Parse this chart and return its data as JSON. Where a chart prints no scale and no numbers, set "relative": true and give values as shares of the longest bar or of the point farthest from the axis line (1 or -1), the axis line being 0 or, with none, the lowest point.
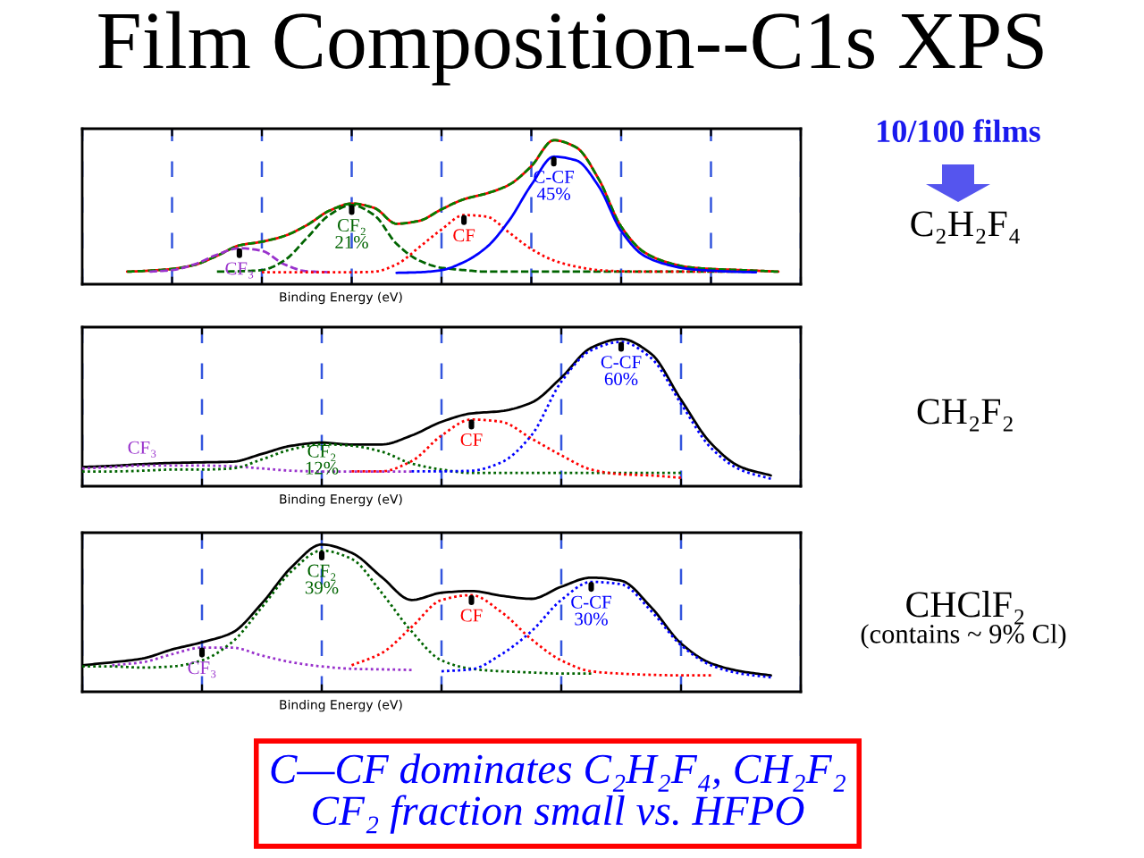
{
  "chart_data": [
    {
      "type": "line",
      "title": "Film Composition--C1s XPS",
      "xlabel": "Binding Energy (eV)",
      "relative": true,
      "grid": "x",
      "categories": [
        null,
        null,
        null,
        null,
        null,
        null,
        null,
        null,
        null,
        null,
        null,
        null,
        null,
        null,
        null,
        null,
        null,
        null,
        null,
        null,
        null,
        null,
        null,
        null,
        null,
        null,
        null,
        null,
        null,
        null,
        null,
        null,
        null
      ],
      "series": [
        {
          "color": "#ff0000",
          "line_style": "solid",
          "values": [
            null,
            null,
            0.087,
            0.094,
            0.106,
            0.134,
            0.197,
            0.27,
            0.295,
            0.335,
            0.41,
            0.51,
            0.56,
            0.53,
            0.42,
            0.44,
            0.52,
            0.59,
            0.63,
            0.69,
            0.82,
            1.0,
            0.95,
            0.73,
            0.4,
            0.225,
            0.154,
            0.118,
            0.106,
            0.1,
            0.094,
            0.087,
            null
          ]
        },
        {
          "color": "#008000",
          "line_style": "dashed",
          "values": [
            null,
            null,
            0.087,
            0.094,
            0.106,
            0.134,
            0.197,
            0.27,
            0.295,
            0.335,
            0.41,
            0.51,
            0.56,
            0.53,
            0.42,
            0.44,
            0.52,
            0.59,
            0.63,
            0.69,
            0.82,
            1.0,
            0.95,
            0.73,
            0.4,
            0.225,
            0.154,
            0.118,
            0.106,
            0.1,
            0.094,
            0.087,
            null
          ]
        },
        {
          "name": "CF₃",
          "color": "#9932cc",
          "line_style": "dashed",
          "values": [
            null,
            null,
            null,
            0.087,
            0.098,
            0.138,
            0.205,
            0.25,
            0.232,
            0.138,
            0.09,
            0.083,
            null,
            null,
            null,
            null,
            null,
            null,
            null,
            null,
            null,
            null,
            null,
            null,
            null,
            null,
            null,
            null,
            null,
            null,
            null,
            null,
            null
          ]
        },
        {
          "name": "CF₂\n21%",
          "color": "#006400",
          "line_style": "dashed",
          "values": [
            null,
            null,
            null,
            null,
            null,
            null,
            0.087,
            0.09,
            0.098,
            0.165,
            0.32,
            0.48,
            0.55,
            0.48,
            0.28,
            0.165,
            0.114,
            0.098,
            0.087,
            0.087,
            0.087,
            0.087,
            0.087,
            0.087,
            0.087,
            0.087,
            0.087,
            0.087,
            0.087,
            0.087,
            0.087,
            null,
            null
          ]
        },
        {
          "name": "CF",
          "color": "#ff0000",
          "line_style": "dotted",
          "values": [
            null,
            null,
            null,
            null,
            null,
            null,
            null,
            null,
            0.083,
            0.083,
            0.083,
            0.083,
            0.083,
            0.087,
            0.138,
            0.256,
            0.38,
            0.48,
            0.47,
            0.36,
            0.244,
            0.165,
            0.122,
            0.098,
            0.09,
            0.087,
            0.087,
            0.087,
            0.087,
            0.087,
            null,
            null,
            null
          ]
        },
        {
          "name": "C-CF\n45%",
          "color": "#0000ff",
          "line_style": "solid",
          "values": [
            null,
            null,
            null,
            null,
            null,
            null,
            null,
            null,
            null,
            null,
            null,
            null,
            null,
            null,
            0.079,
            0.083,
            0.098,
            0.154,
            0.256,
            0.44,
            0.69,
            0.886,
            0.86,
            0.68,
            0.37,
            0.2,
            0.138,
            0.106,
            0.094,
            0.087,
            0.083,
            null,
            null
          ]
        }
      ],
      "annotations": [
        "10/100 films",
        "C₂H₂F₄"
      ]
    },
    {
      "type": "line",
      "xlabel": "Binding Energy (eV)",
      "relative": true,
      "grid": "x",
      "line_style": "dotted",
      "categories": [
        null,
        null,
        null,
        null,
        null,
        null,
        null,
        null,
        null,
        null,
        null,
        null,
        null,
        null,
        null,
        null,
        null,
        null,
        null,
        null,
        null,
        null,
        null,
        null,
        null
      ],
      "series": [
        {
          "color": "#000000",
          "line_style": "solid",
          "values": [
            0.13,
            0.138,
            0.15,
            0.158,
            0.162,
            0.166,
            0.219,
            0.275,
            0.296,
            0.283,
            0.283,
            0.344,
            0.437,
            0.494,
            0.51,
            0.567,
            0.737,
            0.94,
            1.0,
            0.899,
            0.587,
            0.291,
            0.13,
            0.073,
            null
          ]
        },
        {
          "name": "CF₃",
          "color": "#9932cc",
          "values": [
            0.12,
            0.13,
            0.14,
            0.14,
            0.14,
            0.135,
            0.12,
            0.105,
            0.1,
            0.1,
            0.1,
            0.1,
            null,
            null,
            null,
            null,
            null,
            null,
            null,
            null,
            null,
            null,
            null,
            null,
            null
          ]
        },
        {
          "name": "CF₂\n12%",
          "color": "#006400",
          "values": [
            0.1,
            0.1,
            0.105,
            0.113,
            0.113,
            0.12,
            0.182,
            0.251,
            0.285,
            0.275,
            0.235,
            0.154,
            0.113,
            0.09,
            0.09,
            0.09,
            0.09,
            0.09,
            0.09,
            0.09,
            0.09,
            null,
            null,
            null,
            null
          ]
        },
        {
          "name": "CF",
          "color": "#ff0000",
          "values": [
            null,
            null,
            null,
            null,
            null,
            null,
            null,
            null,
            null,
            0.101,
            0.101,
            0.17,
            0.344,
            0.453,
            0.437,
            0.324,
            0.21,
            0.113,
            0.081,
            0.073,
            0.057,
            null,
            null,
            null,
            null
          ]
        },
        {
          "name": "C-CF\n60%",
          "color": "#0000ff",
          "values": [
            null,
            null,
            null,
            null,
            null,
            null,
            null,
            null,
            null,
            null,
            null,
            0.101,
            0.101,
            0.105,
            0.162,
            0.344,
            0.709,
            0.923,
            0.98,
            0.87,
            0.56,
            0.26,
            0.11,
            0.05,
            null
          ]
        }
      ],
      "annotations": [
        "CH₂F₂"
      ]
    },
    {
      "type": "line",
      "xlabel": "Binding Energy (eV)",
      "relative": true,
      "grid": "x",
      "line_style": "dotted",
      "categories": [
        null,
        null,
        null,
        null,
        null,
        null,
        null,
        null,
        null,
        null,
        null,
        null,
        null,
        null,
        null,
        null,
        null,
        null,
        null,
        null,
        null,
        null,
        null,
        null,
        null
      ],
      "series": [
        {
          "color": "#000000",
          "line_style": "solid",
          "values": [
            0.18,
            0.2,
            0.225,
            0.287,
            0.336,
            0.4,
            0.6,
            0.848,
            1.0,
            0.943,
            0.779,
            0.623,
            0.672,
            0.684,
            0.652,
            0.631,
            0.713,
            0.775,
            0.754,
            0.574,
            0.328,
            0.193,
            0.139,
            0.111,
            null
          ]
        },
        {
          "name": "CF₃",
          "color": "#9932cc",
          "values": [
            null,
            0.18,
            0.2,
            0.255,
            0.3,
            0.3,
            0.246,
            0.2,
            0.172,
            0.156,
            0.152,
            0.148,
            null,
            null,
            null,
            null,
            null,
            null,
            null,
            null,
            null,
            null,
            null,
            null,
            null
          ]
        },
        {
          "name": "CF₂\n39%",
          "color": "#006400",
          "values": [
            0.172,
            0.172,
            0.164,
            0.172,
            0.213,
            0.336,
            0.574,
            0.82,
            0.959,
            0.902,
            0.672,
            0.41,
            0.213,
            0.156,
            0.139,
            0.131,
            0.123,
            0.123,
            null,
            null,
            null,
            null,
            null,
            null,
            null
          ]
        },
        {
          "name": "CF",
          "color": "#ff0000",
          "values": [
            null,
            null,
            null,
            null,
            null,
            null,
            null,
            null,
            null,
            0.18,
            0.262,
            0.439,
            0.623,
            0.656,
            0.541,
            0.357,
            0.213,
            0.139,
            0.123,
            0.115,
            0.111,
            0.111,
            null,
            null,
            null
          ]
        },
        {
          "name": "C-CF\n30%",
          "color": "#0000ff",
          "values": [
            null,
            null,
            null,
            null,
            null,
            null,
            null,
            null,
            null,
            null,
            null,
            null,
            0.139,
            0.152,
            0.254,
            0.41,
            0.623,
            0.746,
            0.73,
            0.549,
            0.316,
            0.18,
            0.123,
            0.098,
            null
          ]
        }
      ],
      "annotations": [
        "CHClF₂",
        "(contains ~ 9% Cl)",
        "C—CF dominates C₂H₂F₄, CH₂F₂\nCF₂ fraction small vs. HFPO"
      ]
    }
  ]
}
